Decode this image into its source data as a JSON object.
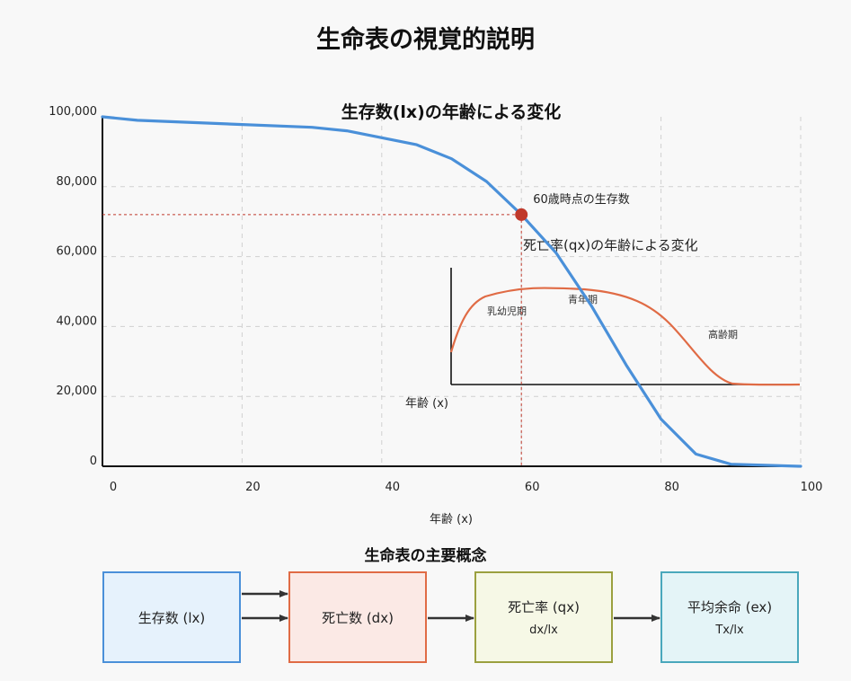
{
  "title": "生命表の視覚的説明",
  "chart_data": {
    "type": "line",
    "title": "生存数(lx)の年齢による変化",
    "xlabel": "年齢 (x)",
    "ylabel": "",
    "xlim": [
      0,
      100
    ],
    "ylim": [
      0,
      100000
    ],
    "x_ticks": [
      "0",
      "20",
      "40",
      "60",
      "80",
      "100"
    ],
    "y_ticks": [
      "0",
      "20,000",
      "40,000",
      "60,000",
      "80,000",
      "100,000"
    ],
    "grid": true,
    "series": [
      {
        "color": "#4a90d9",
        "x": [
          0,
          5,
          30,
          35,
          40,
          45,
          50,
          55,
          60,
          65,
          70,
          75,
          80,
          85,
          90,
          100
        ],
        "y": [
          100000,
          99000,
          97000,
          96000,
          94000,
          92000,
          88000,
          81500,
          72000,
          61000,
          46000,
          29000,
          13500,
          3500,
          600,
          0
        ]
      }
    ],
    "highlight": {
      "label": "60歳時点の生存数",
      "x": 60,
      "y": 72000,
      "color": "#c0392b"
    },
    "inset": {
      "title": "死亡率(qx)の年齢による変化",
      "xlabel": "年齢 (x)",
      "color": "#e06b45",
      "annotations": [
        "乳幼児期",
        "青年期",
        "高齢期"
      ]
    }
  },
  "concepts": {
    "title": "生命表の主要概念",
    "boxes": [
      {
        "label": "生存数 (lx)",
        "formula": ""
      },
      {
        "label": "死亡数 (dx)",
        "formula": ""
      },
      {
        "label": "死亡率 (qx)",
        "formula": "dx/lx"
      },
      {
        "label": "平均余命 (ex)",
        "formula": "Tx/lx"
      }
    ]
  },
  "colors": {
    "lx": "#4a90d9",
    "dx": "#e06b45",
    "qx": "#9ba03f",
    "ex": "#4aa8bc",
    "arrow": "#333333"
  }
}
